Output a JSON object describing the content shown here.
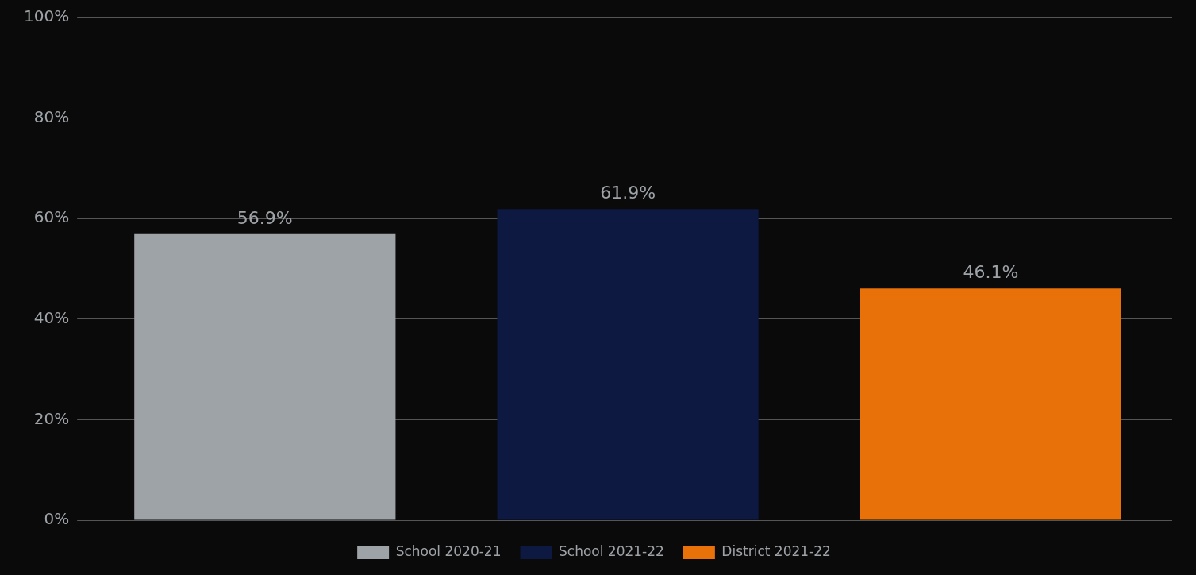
{
  "chart_data": {
    "type": "bar",
    "categories": [
      "School 2020-21",
      "School 2021-22",
      "District 2021-22"
    ],
    "values": [
      56.9,
      61.9,
      46.1
    ],
    "value_labels": [
      "56.9%",
      "61.9%",
      "46.1%"
    ],
    "colors": [
      "#9EA3A8",
      "#0D1941",
      "#E8710A"
    ],
    "ylim": [
      0,
      100
    ],
    "yticks": [
      {
        "value": 0,
        "label": "0%"
      },
      {
        "value": 20,
        "label": "20%"
      },
      {
        "value": 40,
        "label": "40%"
      },
      {
        "value": 60,
        "label": "60%"
      },
      {
        "value": 80,
        "label": "80%"
      },
      {
        "value": 100,
        "label": "100%"
      }
    ],
    "grid": true,
    "legend": "bottom",
    "data_labels": true,
    "tick_labels": "y"
  }
}
